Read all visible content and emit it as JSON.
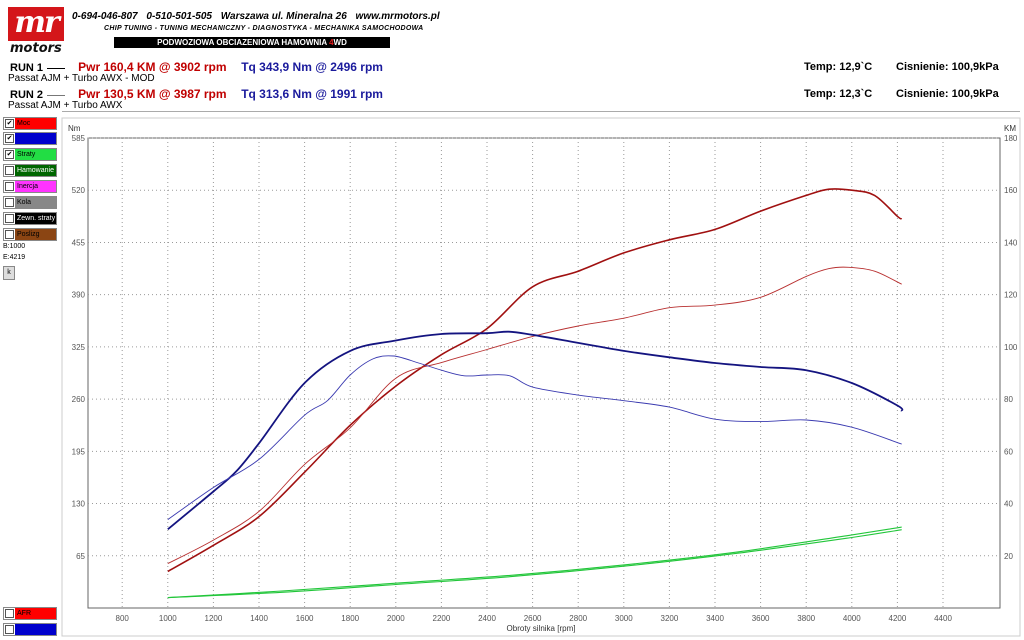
{
  "header": {
    "logo_text": "mr",
    "logo_word": "motors",
    "phone1": "0-694-046-807",
    "phone2": "0-510-501-505",
    "address": "Warszawa ul. Mineralna 26",
    "website": "www.mrmotors.pl",
    "services": "CHIP TUNING - TUNING MECHANICZNY - DIAGNOSTYKA - MECHANIKA SAMOCHODOWA",
    "dyno_label": "PODWOZIOWA OBCIAZENIOWA HAMOWNIA ",
    "dyno_accent": "4",
    "dyno_suffix": "WD"
  },
  "runs": [
    {
      "label": "RUN 1",
      "pwr": "Pwr  160,4 KM @ 3902 rpm",
      "tq": "Tq  343,9 Nm @ 2496 rpm",
      "car": "Passat AJM + Turbo AWX - MOD",
      "temp": "Temp: 12,9`C",
      "pressure": "Cisnienie: 100,9kPa"
    },
    {
      "label": "RUN 2",
      "pwr": "Pwr  130,5 KM @ 3987 rpm",
      "tq": "Tq  313,6 Nm @ 1991 rpm",
      "car": "Passat AJM + Turbo AWX",
      "temp": "Temp: 12,3`C",
      "pressure": "Cisnienie: 100,9kPa"
    }
  ],
  "sidebar": {
    "items": [
      {
        "label": "Moc",
        "checked": true,
        "color": "#ff0000"
      },
      {
        "label": "",
        "checked": true,
        "color": "#0000cc"
      },
      {
        "label": "Straty",
        "checked": true,
        "color": "#22dd44"
      },
      {
        "label": "Hamowanie",
        "checked": false,
        "color": "#006600"
      },
      {
        "label": "Inercja",
        "checked": false,
        "color": "#ff33ff"
      },
      {
        "label": "Kola",
        "checked": false,
        "color": "#888888"
      },
      {
        "label": "Zewn. straty",
        "checked": false,
        "color": "#000000"
      },
      {
        "label": "Poslizg",
        "checked": false,
        "color": "#8b4513"
      }
    ],
    "begin": "B:1000",
    "end": "E:4219",
    "k_button": "k",
    "bottom_items": [
      {
        "label": "AFR",
        "checked": false,
        "color": "#ff0000"
      },
      {
        "label": "",
        "checked": false,
        "color": "#0000cc"
      }
    ]
  },
  "colors": {
    "power_run1": "#a01010",
    "power_run2": "#b83030",
    "torque_run1": "#141480",
    "torque_run2": "#3a3ab0",
    "losses": "#22c63a",
    "grid": "#9a9a9a"
  },
  "chart_data": {
    "type": "line",
    "xlabel": "Obroty silnika [rpm]",
    "x_ticks": [
      800,
      1000,
      1200,
      1400,
      1600,
      1800,
      2000,
      2200,
      2400,
      2600,
      2800,
      3000,
      3200,
      3400,
      3600,
      3800,
      4000,
      4200,
      4400
    ],
    "xlim": [
      650,
      4650
    ],
    "left_axis": {
      "label": "Nm",
      "ticks": [
        65,
        130,
        195,
        260,
        325,
        390,
        455,
        520,
        585
      ],
      "lim": [
        0,
        585
      ]
    },
    "right_axis": {
      "label": "KM",
      "ticks": [
        20,
        40,
        60,
        80,
        100,
        120,
        140,
        160,
        180
      ],
      "lim": [
        0,
        180
      ]
    },
    "series": [
      {
        "axis": "right",
        "style": "power_run1",
        "x": [
          1000,
          1200,
          1400,
          1600,
          1800,
          2000,
          2200,
          2400,
          2600,
          2800,
          3000,
          3200,
          3400,
          3600,
          3800,
          3900,
          4000,
          4100,
          4200,
          4219
        ],
        "values": [
          14,
          24,
          35,
          52,
          70,
          85,
          97,
          107,
          123,
          129,
          136,
          141,
          145,
          152,
          158,
          160.4,
          160,
          158,
          150,
          149
        ]
      },
      {
        "axis": "right",
        "style": "power_run2",
        "x": [
          1000,
          1200,
          1400,
          1600,
          1800,
          2000,
          2200,
          2400,
          2600,
          2800,
          3000,
          3200,
          3400,
          3600,
          3800,
          3900,
          3987,
          4100,
          4219
        ],
        "values": [
          17,
          26,
          37,
          55,
          69,
          88,
          94,
          99,
          104,
          108,
          111,
          115,
          116,
          119,
          127,
          130,
          130.5,
          129,
          124
        ]
      },
      {
        "axis": "left",
        "style": "torque_run1",
        "x": [
          1000,
          1200,
          1300,
          1400,
          1600,
          1800,
          2000,
          2200,
          2400,
          2496,
          2600,
          2800,
          3000,
          3200,
          3400,
          3600,
          3800,
          4000,
          4200,
          4219
        ],
        "values": [
          98,
          145,
          170,
          205,
          280,
          320,
          333,
          341,
          342,
          343.9,
          340,
          330,
          320,
          312,
          305,
          300,
          296,
          280,
          252,
          245
        ]
      },
      {
        "axis": "left",
        "style": "torque_run2",
        "x": [
          1000,
          1200,
          1400,
          1600,
          1700,
          1800,
          1900,
          1991,
          2100,
          2200,
          2300,
          2400,
          2500,
          2600,
          2800,
          3000,
          3200,
          3400,
          3600,
          3800,
          4000,
          4219
        ],
        "values": [
          110,
          150,
          185,
          240,
          258,
          290,
          310,
          313.6,
          305,
          296,
          289,
          290,
          289,
          275,
          265,
          258,
          250,
          235,
          232,
          234,
          225,
          204
        ]
      },
      {
        "axis": "right",
        "style": "losses",
        "x": [
          1000,
          1500,
          2000,
          2500,
          3000,
          3500,
          4000,
          4219
        ],
        "values": [
          4,
          6,
          9,
          12,
          16,
          21,
          27,
          30
        ]
      },
      {
        "axis": "right",
        "style": "losses",
        "x": [
          1000,
          1500,
          2000,
          2500,
          3000,
          3500,
          4000,
          4219
        ],
        "values": [
          4,
          6.5,
          9.5,
          12.5,
          16.5,
          21.5,
          28,
          31
        ]
      }
    ]
  }
}
